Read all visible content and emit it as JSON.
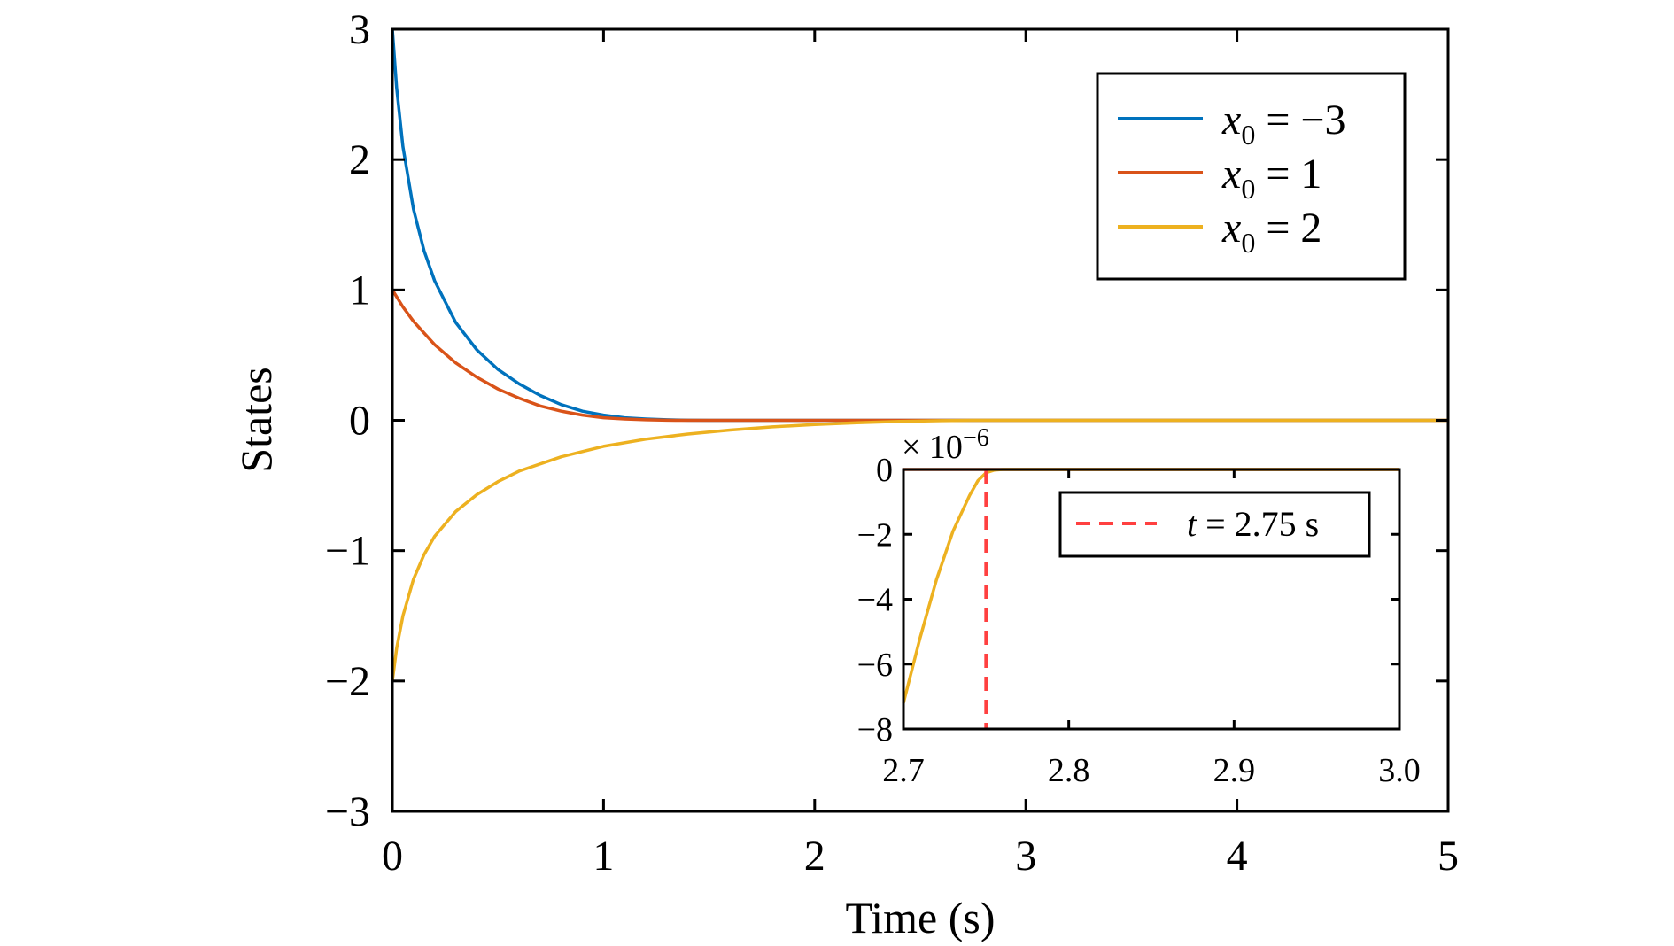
{
  "chart_data": [
    {
      "type": "line",
      "title": "",
      "xlabel": "Time (s)",
      "ylabel": "States",
      "xlim": [
        0,
        5
      ],
      "ylim": [
        -3,
        3
      ],
      "x_ticks": [
        "0",
        "1",
        "2",
        "3",
        "4",
        "5"
      ],
      "y_ticks": [
        "3",
        "2",
        "1",
        "0",
        "−1",
        "−2",
        "−3"
      ],
      "grid": false,
      "legend_position": "top-right",
      "series": [
        {
          "name": "x0 = −3",
          "legend_symbol": "x",
          "legend_subscript": "0",
          "legend_rest": " = −3",
          "color": "#0072BD",
          "x": [
            0,
            0.02,
            0.05,
            0.1,
            0.15,
            0.2,
            0.3,
            0.4,
            0.5,
            0.6,
            0.7,
            0.8,
            0.9,
            1.0,
            1.1,
            1.2,
            1.3,
            1.4,
            1.5,
            2.0,
            3.0,
            4.0,
            5.0
          ],
          "y": [
            3,
            2.55,
            2.1,
            1.62,
            1.3,
            1.07,
            0.75,
            0.54,
            0.39,
            0.28,
            0.19,
            0.12,
            0.07,
            0.04,
            0.02,
            0.01,
            0.004,
            0.001,
            0,
            0,
            0,
            0,
            0
          ]
        },
        {
          "name": "x0 = 1",
          "legend_symbol": "x",
          "legend_subscript": "0",
          "legend_rest": " = 1",
          "color": "#D95319",
          "x": [
            0,
            0.05,
            0.1,
            0.2,
            0.3,
            0.4,
            0.5,
            0.6,
            0.7,
            0.8,
            0.9,
            1.0,
            1.1,
            1.2,
            1.3,
            1.4,
            2.0,
            3.0,
            4.0,
            5.0
          ],
          "y": [
            1,
            0.87,
            0.76,
            0.58,
            0.44,
            0.33,
            0.24,
            0.17,
            0.11,
            0.07,
            0.04,
            0.02,
            0.01,
            0.004,
            0.001,
            0,
            0,
            0,
            0,
            0
          ]
        },
        {
          "name": "x0 = 2",
          "legend_symbol": "x",
          "legend_subscript": "0",
          "legend_rest": " = 2",
          "color": "#EDB120",
          "x": [
            0,
            0.02,
            0.05,
            0.1,
            0.15,
            0.2,
            0.3,
            0.4,
            0.5,
            0.6,
            0.8,
            1.0,
            1.2,
            1.4,
            1.6,
            1.8,
            2.0,
            2.2,
            2.4,
            2.6,
            2.75,
            3.0,
            4.0,
            5.0
          ],
          "y": [
            -2,
            -1.75,
            -1.5,
            -1.22,
            -1.03,
            -0.89,
            -0.7,
            -0.57,
            -0.47,
            -0.39,
            -0.28,
            -0.2,
            -0.145,
            -0.105,
            -0.075,
            -0.05,
            -0.032,
            -0.019,
            -0.009,
            -0.003,
            0,
            0,
            0,
            0
          ]
        }
      ]
    },
    {
      "type": "line",
      "title": "",
      "xlabel": "",
      "ylabel": "",
      "xlim": [
        2.7,
        3.0
      ],
      "ylim": [
        -8,
        0
      ],
      "x_ticks": [
        "2.7",
        "2.8",
        "2.9",
        "3.0"
      ],
      "y_ticks": [
        "0",
        "−2",
        "−4",
        "−6",
        "−8"
      ],
      "y_multiplier": "× 10",
      "y_multiplier_exponent": "−6",
      "grid": false,
      "legend_position": "top-right",
      "series": [
        {
          "name": "x0 = 1",
          "color": "#D95319",
          "x": [
            2.7,
            3.0
          ],
          "y": [
            0,
            0
          ]
        },
        {
          "name": "x0 = 2",
          "color": "#EDB120",
          "x": [
            2.7,
            2.71,
            2.72,
            2.73,
            2.74,
            2.745,
            2.75,
            2.755,
            2.76,
            2.8,
            2.9,
            3.0
          ],
          "y": [
            -7.2,
            -5.2,
            -3.4,
            -1.9,
            -0.8,
            -0.35,
            -0.1,
            -0.02,
            0,
            0,
            0,
            0
          ]
        }
      ],
      "annotation": {
        "name": "t = 2.75 s",
        "symbol": "t",
        "rest": " = 2.75 s",
        "x": 2.75,
        "color": "#FF4040",
        "style": "dashed"
      }
    }
  ]
}
